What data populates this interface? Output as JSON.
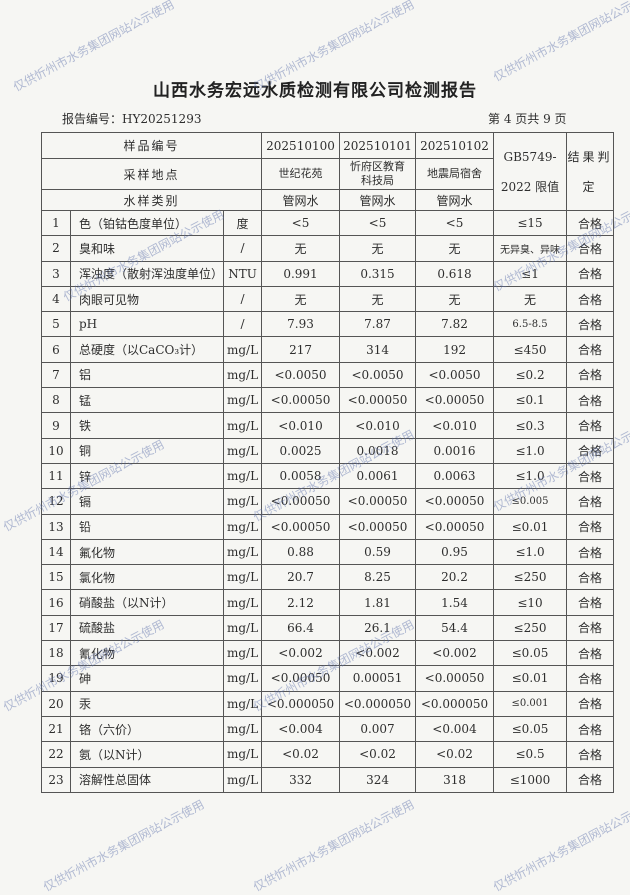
{
  "title": "山西水务宏远水质检测有限公司检测报告",
  "report_no": "报告编号：HY20251293",
  "page_info": "第 4 页共 9 页",
  "watermark": "仅供忻州市水务集团网站公示使用",
  "header": {
    "sample_no_label": "样品编号",
    "location_label": "采样地点",
    "type_label": "水样类别",
    "standard_label": "GB5749-2022 限值",
    "result_label": "结果判定",
    "samples": [
      {
        "no": "202510100",
        "location": "世纪花苑",
        "type": "管网水"
      },
      {
        "no": "202510101",
        "location": "忻府区教育科技局",
        "type": "管网水"
      },
      {
        "no": "202510102",
        "location": "地震局宿舍",
        "type": "管网水"
      }
    ]
  },
  "rows": [
    {
      "n": "1",
      "item": "色（铂钴色度单位）",
      "unit": "度",
      "v": [
        "<5",
        "<5",
        "<5"
      ],
      "limit": "≤15",
      "result": "合格"
    },
    {
      "n": "2",
      "item": "臭和味",
      "unit": "/",
      "v": [
        "无",
        "无",
        "无"
      ],
      "limit": "无异臭、异味",
      "result": "合格"
    },
    {
      "n": "3",
      "item": "浑浊度（散射浑浊度单位）",
      "unit": "NTU",
      "v": [
        "0.991",
        "0.315",
        "0.618"
      ],
      "limit": "≤1",
      "result": "合格"
    },
    {
      "n": "4",
      "item": "肉眼可见物",
      "unit": "/",
      "v": [
        "无",
        "无",
        "无"
      ],
      "limit": "无",
      "result": "合格"
    },
    {
      "n": "5",
      "item": "pH",
      "unit": "/",
      "v": [
        "7.93",
        "7.87",
        "7.82"
      ],
      "limit": "6.5-8.5",
      "result": "合格"
    },
    {
      "n": "6",
      "item": "总硬度（以CaCO₃计）",
      "unit": "mg/L",
      "v": [
        "217",
        "314",
        "192"
      ],
      "limit": "≤450",
      "result": "合格"
    },
    {
      "n": "7",
      "item": "铝",
      "unit": "mg/L",
      "v": [
        "<0.0050",
        "<0.0050",
        "<0.0050"
      ],
      "limit": "≤0.2",
      "result": "合格"
    },
    {
      "n": "8",
      "item": "锰",
      "unit": "mg/L",
      "v": [
        "<0.00050",
        "<0.00050",
        "<0.00050"
      ],
      "limit": "≤0.1",
      "result": "合格"
    },
    {
      "n": "9",
      "item": "铁",
      "unit": "mg/L",
      "v": [
        "<0.010",
        "<0.010",
        "<0.010"
      ],
      "limit": "≤0.3",
      "result": "合格"
    },
    {
      "n": "10",
      "item": "铜",
      "unit": "mg/L",
      "v": [
        "0.0025",
        "0.0018",
        "0.0016"
      ],
      "limit": "≤1.0",
      "result": "合格"
    },
    {
      "n": "11",
      "item": "锌",
      "unit": "mg/L",
      "v": [
        "0.0058",
        "0.0061",
        "0.0063"
      ],
      "limit": "≤1.0",
      "result": "合格"
    },
    {
      "n": "12",
      "item": "镉",
      "unit": "mg/L",
      "v": [
        "<0.00050",
        "<0.00050",
        "<0.00050"
      ],
      "limit": "≤0.005",
      "result": "合格"
    },
    {
      "n": "13",
      "item": "铅",
      "unit": "mg/L",
      "v": [
        "<0.00050",
        "<0.00050",
        "<0.00050"
      ],
      "limit": "≤0.01",
      "result": "合格"
    },
    {
      "n": "14",
      "item": "氟化物",
      "unit": "mg/L",
      "v": [
        "0.88",
        "0.59",
        "0.95"
      ],
      "limit": "≤1.0",
      "result": "合格"
    },
    {
      "n": "15",
      "item": "氯化物",
      "unit": "mg/L",
      "v": [
        "20.7",
        "8.25",
        "20.2"
      ],
      "limit": "≤250",
      "result": "合格"
    },
    {
      "n": "16",
      "item": "硝酸盐（以N计）",
      "unit": "mg/L",
      "v": [
        "2.12",
        "1.81",
        "1.54"
      ],
      "limit": "≤10",
      "result": "合格"
    },
    {
      "n": "17",
      "item": "硫酸盐",
      "unit": "mg/L",
      "v": [
        "66.4",
        "26.1",
        "54.4"
      ],
      "limit": "≤250",
      "result": "合格"
    },
    {
      "n": "18",
      "item": "氰化物",
      "unit": "mg/L",
      "v": [
        "<0.002",
        "<0.002",
        "<0.002"
      ],
      "limit": "≤0.05",
      "result": "合格"
    },
    {
      "n": "19",
      "item": "砷",
      "unit": "mg/L",
      "v": [
        "<0.00050",
        "0.00051",
        "<0.00050"
      ],
      "limit": "≤0.01",
      "result": "合格"
    },
    {
      "n": "20",
      "item": "汞",
      "unit": "mg/L",
      "v": [
        "<0.000050",
        "<0.000050",
        "<0.000050"
      ],
      "limit": "≤0.001",
      "result": "合格"
    },
    {
      "n": "21",
      "item": "铬（六价）",
      "unit": "mg/L",
      "v": [
        "<0.004",
        "0.007",
        "<0.004"
      ],
      "limit": "≤0.05",
      "result": "合格"
    },
    {
      "n": "22",
      "item": "氨（以N计）",
      "unit": "mg/L",
      "v": [
        "<0.02",
        "<0.02",
        "<0.02"
      ],
      "limit": "≤0.5",
      "result": "合格"
    },
    {
      "n": "23",
      "item": "溶解性总固体",
      "unit": "mg/L",
      "v": [
        "332",
        "324",
        "318"
      ],
      "limit": "≤1000",
      "result": "合格"
    }
  ]
}
